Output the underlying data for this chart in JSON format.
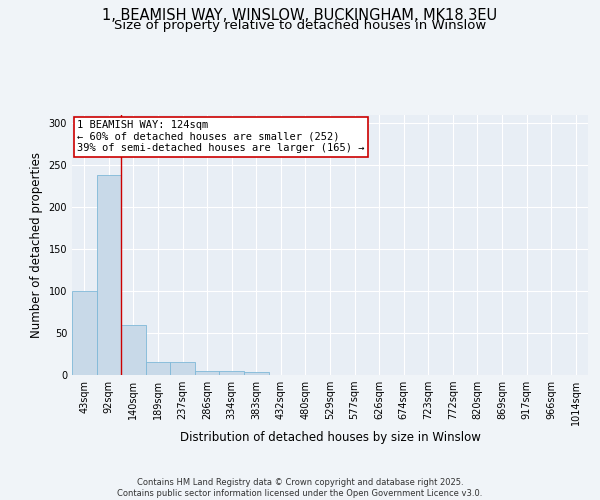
{
  "title_line1": "1, BEAMISH WAY, WINSLOW, BUCKINGHAM, MK18 3EU",
  "title_line2": "Size of property relative to detached houses in Winslow",
  "xlabel": "Distribution of detached houses by size in Winslow",
  "ylabel": "Number of detached properties",
  "bar_values": [
    100,
    239,
    60,
    16,
    16,
    5,
    5,
    3,
    0,
    0,
    0,
    0,
    0,
    0,
    0,
    0,
    0,
    0,
    0,
    0,
    0
  ],
  "bin_labels": [
    "43sqm",
    "92sqm",
    "140sqm",
    "189sqm",
    "237sqm",
    "286sqm",
    "334sqm",
    "383sqm",
    "432sqm",
    "480sqm",
    "529sqm",
    "577sqm",
    "626sqm",
    "674sqm",
    "723sqm",
    "772sqm",
    "820sqm",
    "869sqm",
    "917sqm",
    "966sqm",
    "1014sqm"
  ],
  "bar_color": "#c8d9e8",
  "bar_edgecolor": "#7fb8d8",
  "vline_x": 1.5,
  "vline_color": "#cc0000",
  "annotation_text": "1 BEAMISH WAY: 124sqm\n← 60% of detached houses are smaller (252)\n39% of semi-detached houses are larger (165) →",
  "annotation_box_color": "#ffffff",
  "annotation_box_edgecolor": "#cc0000",
  "ylim": [
    0,
    310
  ],
  "yticks": [
    0,
    50,
    100,
    150,
    200,
    250,
    300
  ],
  "fig_background_color": "#f0f4f8",
  "ax_background_color": "#e8eef5",
  "grid_color": "#ffffff",
  "footer_text": "Contains HM Land Registry data © Crown copyright and database right 2025.\nContains public sector information licensed under the Open Government Licence v3.0.",
  "title_fontsize": 10.5,
  "subtitle_fontsize": 9.5,
  "axis_label_fontsize": 8.5,
  "tick_fontsize": 7,
  "annotation_fontsize": 7.5,
  "footer_fontsize": 6
}
